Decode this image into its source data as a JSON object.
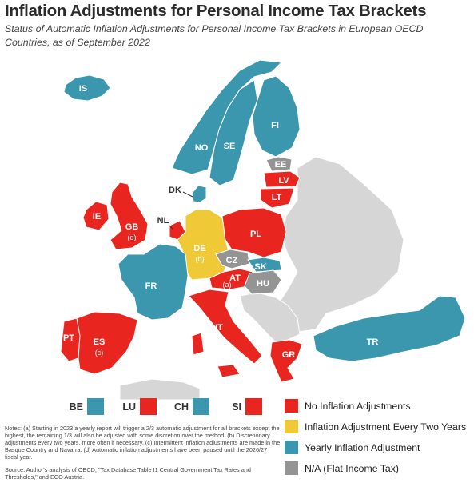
{
  "header": {
    "title": "Inflation Adjustments for Personal Income Tax Brackets",
    "subtitle": "Status of Automatic Inflation Adjustments for Personal Income Tax Brackets in European OECD Countries, as of September 2022"
  },
  "colors": {
    "none": "#e8251f",
    "biennial": "#efca36",
    "yearly": "#3b97ae",
    "flat": "#949494",
    "nonoecd": "#d6d6d6"
  },
  "countries": {
    "IS": {
      "label": "IS",
      "status": "yearly"
    },
    "NO": {
      "label": "NO",
      "status": "yearly"
    },
    "SE": {
      "label": "SE",
      "status": "yearly"
    },
    "FI": {
      "label": "FI",
      "status": "yearly"
    },
    "EE": {
      "label": "EE",
      "status": "flat"
    },
    "LV": {
      "label": "LV",
      "status": "none"
    },
    "LT": {
      "label": "LT",
      "status": "none"
    },
    "DK": {
      "label": "DK",
      "status": "yearly"
    },
    "IE": {
      "label": "IE",
      "status": "none"
    },
    "GB": {
      "label": "GB",
      "note": "(d)",
      "status": "none"
    },
    "NL": {
      "label": "NL",
      "status": "none"
    },
    "DE": {
      "label": "DE",
      "note": "(b)",
      "status": "biennial"
    },
    "PL": {
      "label": "PL",
      "status": "none"
    },
    "CZ": {
      "label": "CZ",
      "status": "flat"
    },
    "SK": {
      "label": "SK",
      "status": "yearly"
    },
    "AT": {
      "label": "AT",
      "note": "(a)",
      "status": "none"
    },
    "HU": {
      "label": "HU",
      "status": "flat"
    },
    "FR": {
      "label": "FR",
      "status": "yearly"
    },
    "IT": {
      "label": "IT",
      "status": "none"
    },
    "PT": {
      "label": "PT",
      "status": "none"
    },
    "ES": {
      "label": "ES",
      "note": "(c)",
      "status": "none"
    },
    "GR": {
      "label": "GR",
      "status": "none"
    },
    "TR": {
      "label": "TR",
      "status": "yearly"
    }
  },
  "small_states": [
    {
      "label": "BE",
      "status": "yearly"
    },
    {
      "label": "LU",
      "status": "none"
    },
    {
      "label": "CH",
      "status": "yearly"
    },
    {
      "label": "SI",
      "status": "none"
    }
  ],
  "legend": [
    {
      "key": "none",
      "label": "No Inflation Adjustments"
    },
    {
      "key": "biennial",
      "label": "Inflation Adjustment Every Two Years"
    },
    {
      "key": "yearly",
      "label": "Yearly Inflation Adjustment"
    },
    {
      "key": "flat",
      "label": "N/A (Flat Income Tax)"
    }
  ],
  "notes": "Notes: (a) Starting in 2023 a yearly report will trigger a 2/3 automatic adjustment for all brackets except the highest, the remaining 1/3 will also be adjusted with some discretion over the method. (b) Discretionary adjustments every two years, more often if necessary. (c) Intermittent inflation adjustments are made in the Basque Country and Navarra. (d) Automatic inflation adjustments have been paused until the 2026/27 fiscal year.",
  "source": "Source: Author's analysis of OECD, \"Tax Database Table I1 Central Government Tax Rates and Thresholds,\" and ECO Austria."
}
